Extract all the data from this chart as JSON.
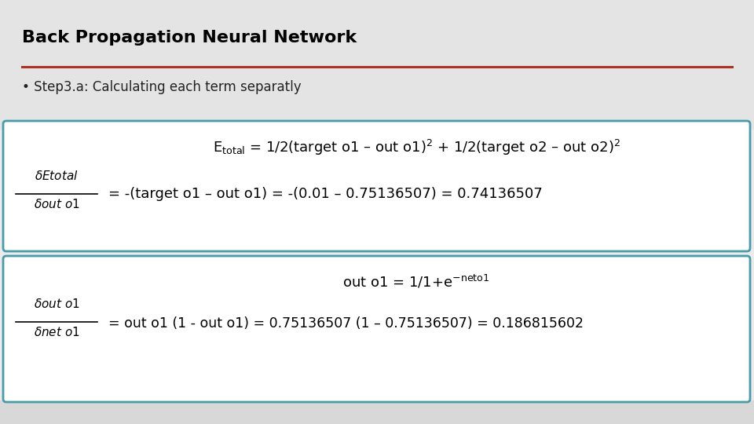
{
  "title": "Back Propagation Neural Network",
  "subtitle": "• Step3.a: Calculating each term separatly",
  "bg_color": "#ebebeb",
  "header_bg": "#e8e8e8",
  "box_bg": "#ffffff",
  "box_border": "#4a9aaa",
  "title_color": "#000000",
  "rule_color": "#aa3322",
  "subtitle_color": "#222222"
}
